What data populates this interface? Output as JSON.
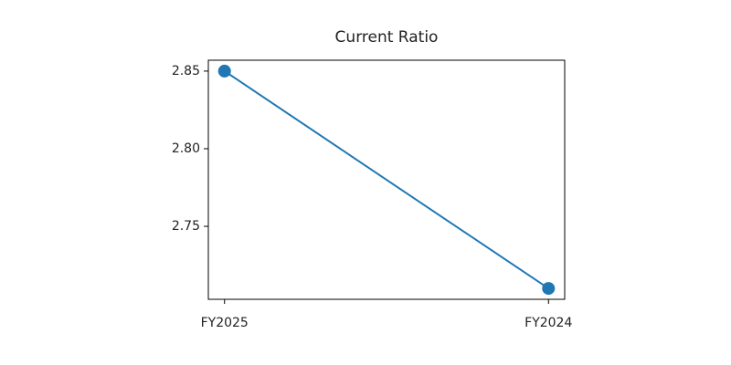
{
  "chart_data": {
    "type": "line",
    "title": "Current Ratio",
    "categories": [
      "FY2025",
      "FY2024"
    ],
    "series": [
      {
        "name": "Current Ratio",
        "color": "#1f77b4",
        "values": [
          2.85,
          2.71
        ]
      }
    ],
    "ylim": [
      2.703,
      2.857
    ],
    "yticks": [
      {
        "value": 2.75,
        "label": "2.75"
      },
      {
        "value": 2.8,
        "label": "2.80"
      },
      {
        "value": 2.85,
        "label": "2.85"
      }
    ],
    "grid": false
  }
}
